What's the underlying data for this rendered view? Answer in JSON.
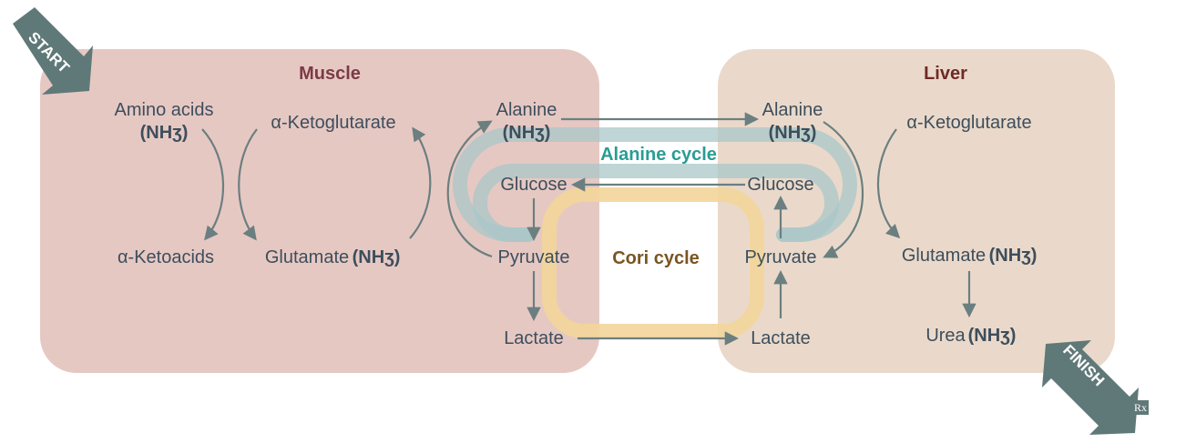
{
  "muscle": {
    "title": "Muscle",
    "amino_acids": "Amino acids",
    "amino_nh3": "(NHʒ)",
    "alpha_ketoglutarate": "α-Ketoglutarate",
    "alpha_ketoacids": "α-Ketoacids",
    "glutamate": "Glutamate",
    "glutamate_nh3": "(NHʒ)",
    "alanine": "Alanine",
    "alanine_nh3": "(NHʒ)",
    "glucose": "Glucose",
    "pyruvate": "Pyruvate",
    "lactate": "Lactate"
  },
  "liver": {
    "title": "Liver",
    "alanine": "Alanine",
    "alanine_nh3": "(NHʒ)",
    "alpha_ketoglutarate": "α-Ketoglutarate",
    "glucose": "Glucose",
    "pyruvate": "Pyruvate",
    "glutamate": "Glutamate",
    "glutamate_nh3": "(NHʒ)",
    "lactate": "Lactate",
    "urea": "Urea",
    "urea_nh3": "(NHʒ)"
  },
  "cycles": {
    "alanine": "Alanine cycle",
    "cori": "Cori cycle"
  },
  "banners": {
    "start": "START",
    "finish": "FINISH"
  },
  "logo": "Rx",
  "colors": {
    "muscle_panel": "#e6c8c3",
    "liver_panel": "#e8d6c6",
    "alanine_band": "#a9c7c8",
    "cori_band": "#f3d59a",
    "arrow": "#6b7f80",
    "banner": "#5f7978"
  }
}
